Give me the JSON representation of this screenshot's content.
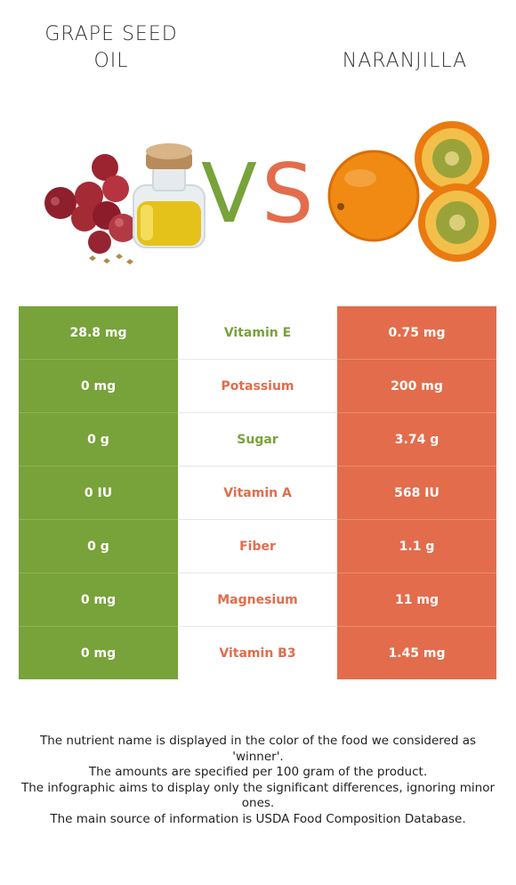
{
  "header": {
    "left_title_line1": "GRAPE SEED",
    "left_title_line2": "OIL",
    "right_title": "NARANJILLA",
    "vs_v": "V",
    "vs_s": "S"
  },
  "colors": {
    "left_food": "#78a23a",
    "right_food": "#e36c4c"
  },
  "rows": [
    {
      "left": "28.8 mg",
      "nutrient": "Vitamin E",
      "right": "0.75 mg",
      "winner": "left"
    },
    {
      "left": "0 mg",
      "nutrient": "Potassium",
      "right": "200 mg",
      "winner": "right"
    },
    {
      "left": "0 g",
      "nutrient": "Sugar",
      "right": "3.74 g",
      "winner": "left"
    },
    {
      "left": "0 IU",
      "nutrient": "Vitamin A",
      "right": "568 IU",
      "winner": "right"
    },
    {
      "left": "0 g",
      "nutrient": "Fiber",
      "right": "1.1 g",
      "winner": "right"
    },
    {
      "left": "0 mg",
      "nutrient": "Magnesium",
      "right": "11 mg",
      "winner": "right"
    },
    {
      "left": "0 mg",
      "nutrient": "Vitamin B3",
      "right": "1.45 mg",
      "winner": "right"
    }
  ],
  "footer": {
    "line1": "The nutrient name is displayed in the color of the food we considered as 'winner'.",
    "line2": "The amounts are specified per 100 gram of the product.",
    "line3": "The infographic aims to display only the significant differences, ignoring minor ones.",
    "line4": "The main source of information is USDA Food Composition Database."
  }
}
